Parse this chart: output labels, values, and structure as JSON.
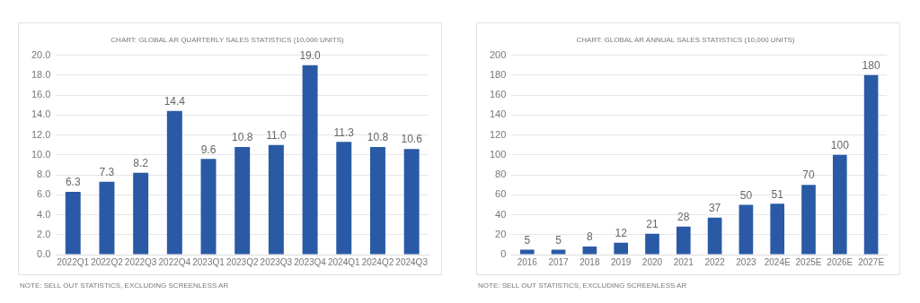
{
  "chart_data": [
    {
      "type": "bar",
      "title": "CHART: GLOBAL AR QUARTERLY SALES STATISTICS (10,000 UNITS)",
      "categories": [
        "2022Q1",
        "2022Q2",
        "2022Q3",
        "2022Q4",
        "2023Q1",
        "2023Q2",
        "2023Q3",
        "2023Q4",
        "2024Q1",
        "2024Q2",
        "2024Q3"
      ],
      "series": [
        {
          "color": "#2a5aa6",
          "values": [
            6.3,
            7.3,
            8.2,
            14.4,
            9.6,
            10.8,
            11.0,
            19.0,
            11.3,
            10.8,
            10.6
          ],
          "value_labels": [
            "6.3",
            "7.3",
            "8.2",
            "14.4",
            "9.6",
            "10.8",
            "11.0",
            "19.0",
            "11.3",
            "10.8",
            "10.6"
          ]
        }
      ],
      "ylim": [
        0,
        20
      ],
      "yticks": [
        {
          "value": 0,
          "label": "0.0"
        },
        {
          "value": 2,
          "label": "2.0"
        },
        {
          "value": 4,
          "label": "4.0"
        },
        {
          "value": 6,
          "label": "6.0"
        },
        {
          "value": 8,
          "label": "8.0"
        },
        {
          "value": 10,
          "label": "10.0"
        },
        {
          "value": 12,
          "label": "12.0"
        },
        {
          "value": 14,
          "label": "14.0"
        },
        {
          "value": 16,
          "label": "16.0"
        },
        {
          "value": 18,
          "label": "18.0"
        },
        {
          "value": 20,
          "label": "20.0"
        }
      ],
      "grid": "y",
      "legend": false,
      "annotations": [
        "NOTE: SELL OUT STATISTICS, EXCLUDING SCREENLESS AR"
      ]
    },
    {
      "type": "bar",
      "title": "CHART: GLOBAL AR ANNUAL SALES STATISTICS (10,000 UNITS)",
      "categories": [
        "2016",
        "2017",
        "2018",
        "2019",
        "2020",
        "2021",
        "2022",
        "2023",
        "2024E",
        "2025E",
        "2026E",
        "2027E"
      ],
      "series": [
        {
          "color": "#2a5aa6",
          "values": [
            5,
            5,
            8,
            12,
            21,
            28,
            37,
            50,
            51,
            70,
            100,
            180
          ]
        }
      ],
      "ylim": [
        0,
        200
      ],
      "yticks": [
        0,
        20,
        40,
        60,
        80,
        100,
        120,
        140,
        160,
        180,
        200
      ],
      "grid": "y",
      "legend": false,
      "data_labels": true,
      "annotations": [
        "NOTE: SELL OUT STATISTICS, EXCLUDING SCREENLESS AR"
      ]
    }
  ]
}
